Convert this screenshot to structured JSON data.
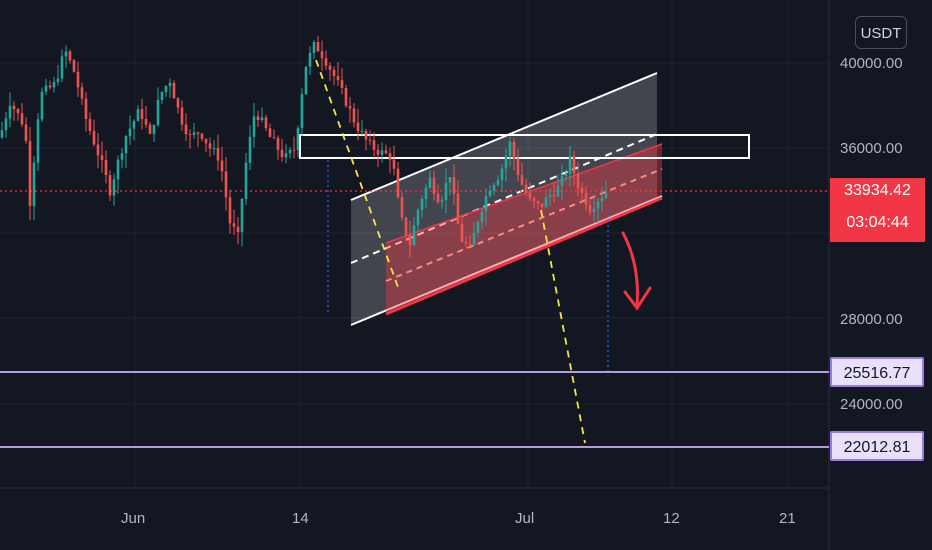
{
  "currency": "USDT",
  "price_scale": {
    "ticks": [
      "40000.00",
      "36000.00",
      "28000.00",
      "24000.00"
    ]
  },
  "time_scale": {
    "ticks": [
      "Jun",
      "14",
      "Jul",
      "12",
      "21"
    ]
  },
  "last_price": {
    "value": "33934.42",
    "countdown": "03:04:44",
    "color": "#f23645"
  },
  "levels": [
    {
      "label": "25516.77",
      "price": 25516.77,
      "color": "#b39ddb"
    },
    {
      "label": "22012.81",
      "price": 22012.81,
      "color": "#b39ddb"
    }
  ],
  "colors": {
    "background": "#131722",
    "up_candle": "#26a69a",
    "down_candle": "#ef5350",
    "channel_white": "#ffffff",
    "channel_red": "#f23645",
    "projection": "#f5e642"
  },
  "chart_data": {
    "type": "candlestick",
    "symbol_quote": "USDT",
    "y_axis_ticks": [
      40000,
      36000,
      28000,
      24000
    ],
    "x_axis_ticks": [
      "Jun",
      "14",
      "Jul",
      "12",
      "21"
    ],
    "last_price": 33934.42,
    "horizontal_levels": [
      25516.77,
      22012.81
    ],
    "approx_price_range": [
      30000,
      41500
    ],
    "annotations": [
      "ascending white channel",
      "ascending red sub-channel",
      "horizontal white rectangle near 36000",
      "yellow dashed projection lines",
      "red arrow pointing down"
    ]
  }
}
